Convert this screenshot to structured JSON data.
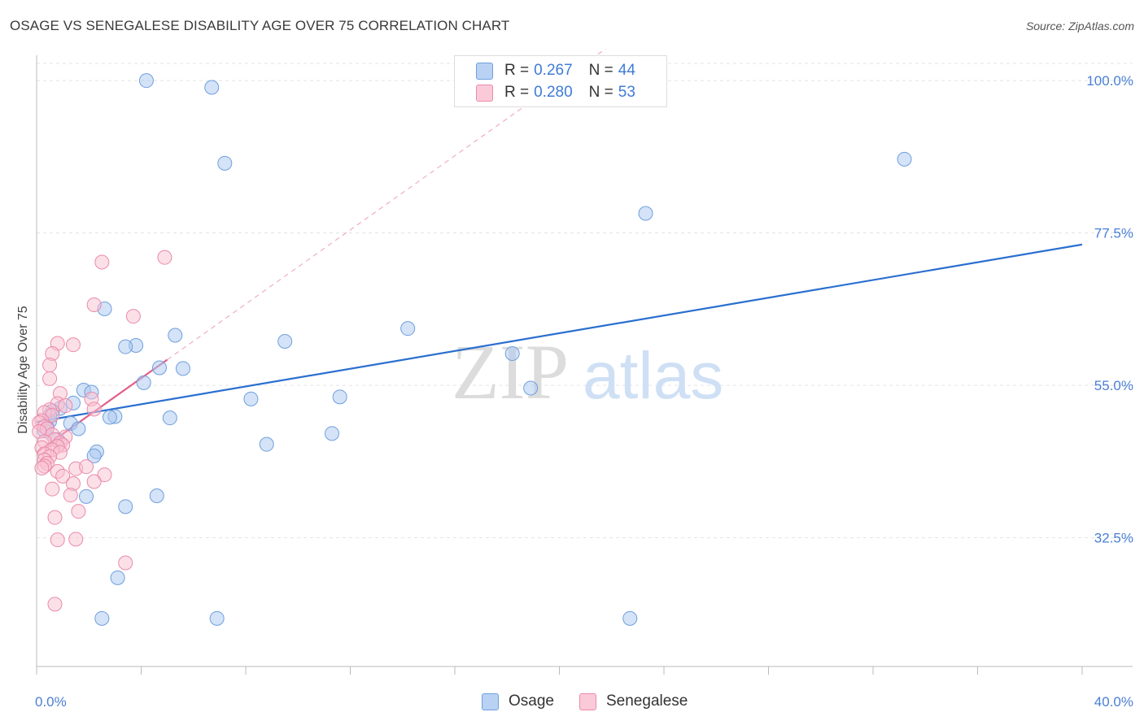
{
  "header": {
    "title": "OSAGE VS SENEGALESE DISABILITY AGE OVER 75 CORRELATION CHART",
    "source": "Source: ZipAtlas.com"
  },
  "watermark": {
    "zip": "ZIP",
    "atlas": "atlas"
  },
  "legend": {
    "rows": [
      {
        "r_label": "R =",
        "r_value": "0.267",
        "n_label": "N =",
        "n_value": "44"
      },
      {
        "r_label": "R =",
        "r_value": "0.280",
        "n_label": "N =",
        "n_value": "53"
      }
    ]
  },
  "bottom_legend": {
    "osage": "Osage",
    "senegalese": "Senegalese"
  },
  "colors": {
    "osage_fill": "#aac8f0",
    "osage_stroke": "#6f9fde",
    "osage_line": "#2a6fcf",
    "sen_fill": "#f9c1d2",
    "sen_stroke": "#ea8aaa",
    "sen_line": "#e0608a",
    "grid": "#e3e3e3",
    "tick_text": "#4a7fd4"
  },
  "chart_data": {
    "type": "scatter",
    "title": "OSAGE VS SENEGALESE DISABILITY AGE OVER 75 CORRELATION CHART",
    "xlabel": "",
    "ylabel": "Disability Age Over 75",
    "xlim": [
      0,
      40
    ],
    "ylim": [
      13.5,
      103.5
    ],
    "x_tick_labels": [
      "0.0%",
      "40.0%"
    ],
    "y_ticks": [
      32.5,
      55.0,
      77.5,
      100.0
    ],
    "y_tick_labels": [
      "32.5%",
      "55.0%",
      "77.5%",
      "100.0%"
    ],
    "series": [
      {
        "name": "Osage",
        "points": [
          [
            4.2,
            100.0
          ],
          [
            6.7,
            99.0
          ],
          [
            7.2,
            87.8
          ],
          [
            33.2,
            88.4
          ],
          [
            23.3,
            80.4
          ],
          [
            2.6,
            66.3
          ],
          [
            14.2,
            63.4
          ],
          [
            5.3,
            62.4
          ],
          [
            9.5,
            61.5
          ],
          [
            3.8,
            60.9
          ],
          [
            3.4,
            60.7
          ],
          [
            18.2,
            59.7
          ],
          [
            5.6,
            57.5
          ],
          [
            4.7,
            57.6
          ],
          [
            4.1,
            55.4
          ],
          [
            18.9,
            54.6
          ],
          [
            1.8,
            54.3
          ],
          [
            2.1,
            54.0
          ],
          [
            11.6,
            53.3
          ],
          [
            8.2,
            53.0
          ],
          [
            1.4,
            52.4
          ],
          [
            0.9,
            51.6
          ],
          [
            0.6,
            51.2
          ],
          [
            3.0,
            50.4
          ],
          [
            2.8,
            50.3
          ],
          [
            5.1,
            50.2
          ],
          [
            1.3,
            49.4
          ],
          [
            0.5,
            49.7
          ],
          [
            0.4,
            48.8
          ],
          [
            1.6,
            48.6
          ],
          [
            0.3,
            48.3
          ],
          [
            0.8,
            47.0
          ],
          [
            11.3,
            47.9
          ],
          [
            8.8,
            46.3
          ],
          [
            2.3,
            45.2
          ],
          [
            2.2,
            44.6
          ],
          [
            1.9,
            38.6
          ],
          [
            4.6,
            38.7
          ],
          [
            3.4,
            37.1
          ],
          [
            3.1,
            26.6
          ],
          [
            2.5,
            20.6
          ],
          [
            6.9,
            20.6
          ],
          [
            22.7,
            20.6
          ],
          [
            0.5,
            50.5
          ]
        ]
      },
      {
        "name": "Senegalese",
        "points": [
          [
            4.9,
            73.9
          ],
          [
            2.5,
            73.2
          ],
          [
            2.2,
            66.9
          ],
          [
            3.7,
            65.2
          ],
          [
            0.8,
            61.2
          ],
          [
            1.4,
            61.0
          ],
          [
            0.6,
            59.7
          ],
          [
            0.5,
            58.0
          ],
          [
            0.5,
            56.0
          ],
          [
            0.9,
            53.8
          ],
          [
            2.1,
            53.0
          ],
          [
            0.8,
            52.3
          ],
          [
            1.1,
            52.0
          ],
          [
            0.5,
            51.4
          ],
          [
            0.3,
            51.0
          ],
          [
            0.6,
            50.6
          ],
          [
            2.2,
            51.5
          ],
          [
            0.2,
            49.8
          ],
          [
            0.1,
            49.5
          ],
          [
            0.3,
            48.9
          ],
          [
            0.4,
            48.6
          ],
          [
            0.1,
            48.2
          ],
          [
            0.6,
            47.7
          ],
          [
            1.1,
            47.4
          ],
          [
            0.7,
            47.0
          ],
          [
            0.3,
            46.7
          ],
          [
            0.9,
            46.5
          ],
          [
            1.0,
            46.2
          ],
          [
            0.8,
            46.0
          ],
          [
            0.2,
            45.8
          ],
          [
            0.6,
            45.5
          ],
          [
            0.9,
            45.1
          ],
          [
            0.3,
            44.9
          ],
          [
            0.5,
            44.5
          ],
          [
            0.3,
            44.0
          ],
          [
            0.4,
            43.5
          ],
          [
            0.3,
            43.1
          ],
          [
            0.2,
            42.8
          ],
          [
            0.8,
            42.3
          ],
          [
            1.5,
            42.7
          ],
          [
            1.0,
            41.6
          ],
          [
            2.6,
            41.8
          ],
          [
            2.2,
            40.8
          ],
          [
            1.4,
            40.5
          ],
          [
            0.6,
            39.7
          ],
          [
            1.3,
            38.8
          ],
          [
            1.6,
            36.4
          ],
          [
            0.7,
            35.5
          ],
          [
            0.8,
            32.2
          ],
          [
            1.5,
            32.3
          ],
          [
            3.4,
            28.8
          ],
          [
            0.7,
            22.7
          ],
          [
            1.9,
            43.0
          ]
        ]
      }
    ],
    "trend_lines": [
      {
        "name": "Osage",
        "x": [
          0,
          40
        ],
        "y": [
          49.6,
          75.8
        ],
        "style": "solid"
      },
      {
        "name": "Senegalese",
        "x": [
          0,
          5.0
        ],
        "y": [
          45.1,
          58.8
        ],
        "style": "solid"
      },
      {
        "name": "Senegalese",
        "x": [
          5.0,
          40
        ],
        "y": [
          58.8,
          154.6
        ],
        "style": "dashed"
      }
    ]
  }
}
